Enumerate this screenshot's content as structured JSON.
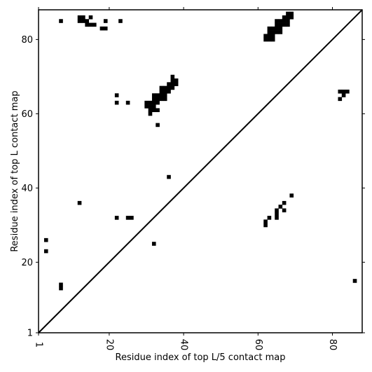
{
  "chart_data": {
    "type": "heatmap",
    "xlabel": "Residue index of top L/5 contact map",
    "ylabel": "Residue index of top L contact map",
    "xlim": [
      1,
      88
    ],
    "ylim": [
      1,
      88
    ],
    "x_ticks": [
      1,
      20,
      40,
      60,
      80
    ],
    "y_ticks": [
      1,
      20,
      40,
      60,
      80
    ],
    "diagonal": true,
    "grid": false,
    "cell_color": "#000000",
    "upper_triangle_contacts": [
      [
        7,
        85
      ],
      [
        12,
        86
      ],
      [
        13,
        86
      ],
      [
        15,
        86
      ],
      [
        12,
        85
      ],
      [
        13,
        85
      ],
      [
        14,
        85
      ],
      [
        14,
        84
      ],
      [
        15,
        84
      ],
      [
        16,
        84
      ],
      [
        19,
        85
      ],
      [
        23,
        85
      ],
      [
        18,
        83
      ],
      [
        19,
        83
      ],
      [
        22,
        65
      ],
      [
        22,
        63
      ],
      [
        25,
        63
      ],
      [
        30,
        63
      ],
      [
        31,
        63
      ],
      [
        32,
        63
      ],
      [
        30,
        62
      ],
      [
        31,
        62
      ],
      [
        32,
        62
      ],
      [
        31,
        61
      ],
      [
        32,
        61
      ],
      [
        33,
        61
      ],
      [
        31,
        60
      ],
      [
        33,
        57
      ],
      [
        32,
        65
      ],
      [
        33,
        65
      ],
      [
        34,
        65
      ],
      [
        32,
        64
      ],
      [
        33,
        64
      ],
      [
        34,
        64
      ],
      [
        35,
        64
      ],
      [
        33,
        63
      ],
      [
        34,
        65
      ],
      [
        35,
        65
      ],
      [
        34,
        66
      ],
      [
        35,
        66
      ],
      [
        36,
        66
      ],
      [
        34,
        67
      ],
      [
        35,
        67
      ],
      [
        36,
        67
      ],
      [
        37,
        67
      ],
      [
        36,
        68
      ],
      [
        37,
        68
      ],
      [
        38,
        68
      ],
      [
        37,
        69
      ],
      [
        38,
        69
      ],
      [
        37,
        70
      ],
      [
        36,
        43
      ],
      [
        62,
        81
      ],
      [
        63,
        81
      ],
      [
        64,
        81
      ],
      [
        62,
        80
      ],
      [
        63,
        80
      ],
      [
        64,
        80
      ],
      [
        63,
        82
      ],
      [
        64,
        82
      ],
      [
        65,
        82
      ],
      [
        66,
        82
      ],
      [
        63,
        83
      ],
      [
        64,
        83
      ],
      [
        65,
        83
      ],
      [
        66,
        83
      ],
      [
        65,
        84
      ],
      [
        66,
        84
      ],
      [
        67,
        84
      ],
      [
        68,
        84
      ],
      [
        65,
        85
      ],
      [
        66,
        85
      ],
      [
        67,
        85
      ],
      [
        68,
        85
      ],
      [
        67,
        86
      ],
      [
        68,
        86
      ],
      [
        69,
        86
      ],
      [
        68,
        87
      ],
      [
        69,
        87
      ]
    ],
    "lower_triangle_contacts": [
      [
        3,
        26
      ],
      [
        3,
        23
      ],
      [
        7,
        14
      ],
      [
        7,
        13
      ],
      [
        12,
        36
      ],
      [
        22,
        32
      ],
      [
        25,
        32
      ],
      [
        26,
        32
      ],
      [
        32,
        25
      ],
      [
        62,
        31
      ],
      [
        62,
        30
      ],
      [
        63,
        32
      ],
      [
        65,
        34
      ],
      [
        65,
        33
      ],
      [
        65,
        32
      ],
      [
        66,
        35
      ],
      [
        67,
        36
      ],
      [
        67,
        34
      ],
      [
        69,
        38
      ],
      [
        82,
        66
      ],
      [
        83,
        66
      ],
      [
        84,
        66
      ],
      [
        83,
        65
      ],
      [
        82,
        64
      ],
      [
        86,
        15
      ]
    ]
  }
}
